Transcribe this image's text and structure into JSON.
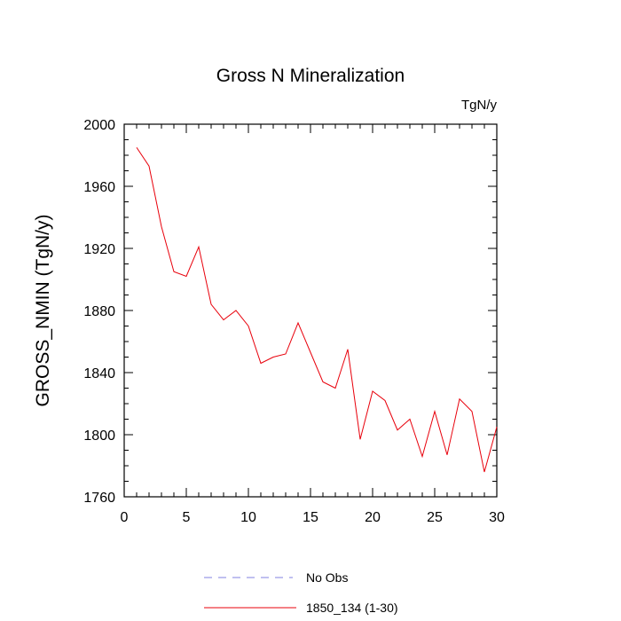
{
  "chart_data": {
    "type": "line",
    "title": "Gross N Mineralization",
    "units_label": "TgN/y",
    "ylabel": "GROSS_NMIN  (TgN/y)",
    "xlabel": "",
    "xlim": [
      0,
      30
    ],
    "ylim": [
      1760,
      2000
    ],
    "x_ticks": [
      0,
      5,
      10,
      15,
      20,
      25,
      30
    ],
    "y_ticks": [
      1760,
      1800,
      1840,
      1880,
      1920,
      1960,
      2000
    ],
    "x_minor_step": 1,
    "y_minor_step": 10,
    "grid": false,
    "legend_position": "bottom",
    "series": [
      {
        "name": "1850_134 (1-30)",
        "color": "#e8000b",
        "dash": "solid",
        "x": [
          1,
          2,
          3,
          4,
          5,
          6,
          7,
          8,
          9,
          10,
          11,
          12,
          13,
          14,
          15,
          16,
          17,
          18,
          19,
          20,
          21,
          22,
          23,
          24,
          25,
          26,
          27,
          28,
          29,
          30
        ],
        "values": [
          1985,
          1973,
          1934,
          1905,
          1902,
          1921,
          1884,
          1874,
          1880,
          1870,
          1846,
          1850,
          1852,
          1872,
          1853,
          1834,
          1830,
          1855,
          1797,
          1828,
          1822,
          1803,
          1810,
          1786,
          1815,
          1787,
          1823,
          1815,
          1776,
          1805
        ]
      }
    ],
    "legend": [
      {
        "name": "No Obs",
        "color": "#8080e0",
        "dash": "dashed"
      },
      {
        "name": "1850_134 (1-30)",
        "color": "#e8000b",
        "dash": "solid"
      }
    ]
  }
}
